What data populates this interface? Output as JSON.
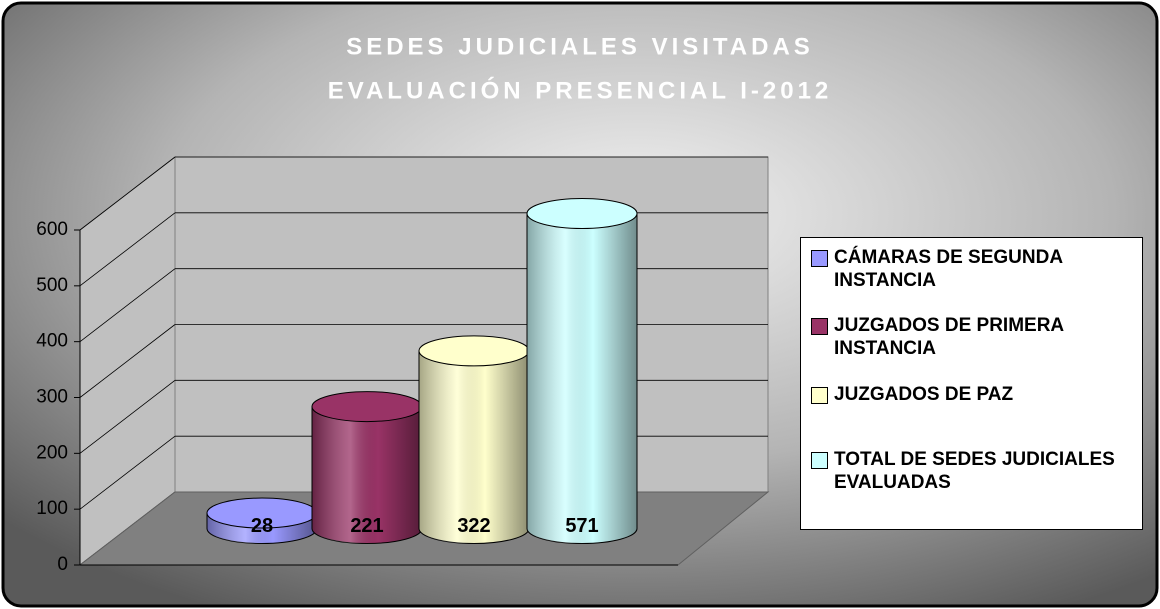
{
  "chart_data": {
    "type": "cylinder",
    "title": [
      "SEDES JUDICIALES VISITADAS",
      "EVALUACIÓN PRESENCIAL I-2012"
    ],
    "series": [
      {
        "name": "CÁMARAS DE SEGUNDA INSTANCIA",
        "color": "#9999ff",
        "values": [
          28
        ]
      },
      {
        "name": "JUZGADOS DE PRIMERA INSTANCIA",
        "color": "#993366",
        "values": [
          221
        ]
      },
      {
        "name": "JUZGADOS DE PAZ",
        "color": "#ffffcc",
        "values": [
          322
        ]
      },
      {
        "name": "TOTAL DE SEDES JUDICIALES EVALUADAS",
        "color": "#ccffff",
        "values": [
          571
        ]
      }
    ],
    "ylim": [
      0,
      600
    ],
    "yticks": [
      0,
      100,
      200,
      300,
      400,
      500,
      600
    ],
    "grid": true,
    "legend": "right"
  }
}
